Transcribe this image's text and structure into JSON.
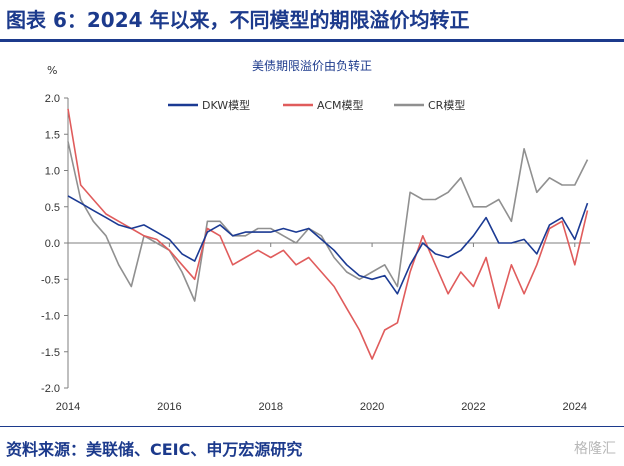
{
  "header": {
    "title": "图表 6：2024 年以来，不同模型的期限溢价均转正"
  },
  "source": "资料来源：美联储、CEIC、申万宏源研究",
  "watermark": "格隆汇",
  "chart_data": {
    "type": "line",
    "title": "美债期限溢价由负转正",
    "unit": "%",
    "ylim": [
      -2.0,
      2.0
    ],
    "yticks": [
      "2.0",
      "1.5",
      "1.0",
      "0.5",
      "0.0",
      "-0.5",
      "-1.0",
      "-1.5",
      "-2.0"
    ],
    "xlim": [
      2014.0,
      2024.3
    ],
    "xticks": [
      "2014",
      "2016",
      "2018",
      "2020",
      "2022",
      "2024"
    ],
    "legend_position": "top",
    "grid": false,
    "x": [
      2014.0,
      2014.25,
      2014.5,
      2014.75,
      2015.0,
      2015.25,
      2015.5,
      2015.75,
      2016.0,
      2016.25,
      2016.5,
      2016.75,
      2017.0,
      2017.25,
      2017.5,
      2017.75,
      2018.0,
      2018.25,
      2018.5,
      2018.75,
      2019.0,
      2019.25,
      2019.5,
      2019.75,
      2020.0,
      2020.25,
      2020.5,
      2020.75,
      2021.0,
      2021.25,
      2021.5,
      2021.75,
      2022.0,
      2022.25,
      2022.5,
      2022.75,
      2023.0,
      2023.25,
      2023.5,
      2023.75,
      2024.0,
      2024.25
    ],
    "series": [
      {
        "name": "DKW模型",
        "color": "#1b3a93",
        "values": [
          0.65,
          0.55,
          0.45,
          0.35,
          0.25,
          0.2,
          0.25,
          0.15,
          0.05,
          -0.15,
          -0.25,
          0.15,
          0.25,
          0.1,
          0.15,
          0.15,
          0.15,
          0.2,
          0.15,
          0.2,
          0.05,
          -0.1,
          -0.3,
          -0.45,
          -0.5,
          -0.45,
          -0.7,
          -0.3,
          0.0,
          -0.15,
          -0.2,
          -0.1,
          0.1,
          0.35,
          0.0,
          0.0,
          0.05,
          -0.15,
          0.25,
          0.35,
          0.05,
          0.55
        ]
      },
      {
        "name": "ACM模型",
        "color": "#e05c5c",
        "values": [
          1.85,
          0.8,
          0.6,
          0.4,
          0.3,
          0.2,
          0.1,
          0.05,
          -0.1,
          -0.3,
          -0.5,
          0.2,
          0.1,
          -0.3,
          -0.2,
          -0.1,
          -0.2,
          -0.1,
          -0.3,
          -0.2,
          -0.4,
          -0.6,
          -0.9,
          -1.2,
          -1.6,
          -1.2,
          -1.1,
          -0.4,
          0.1,
          -0.3,
          -0.7,
          -0.4,
          -0.6,
          -0.2,
          -0.9,
          -0.3,
          -0.7,
          -0.3,
          0.2,
          0.3,
          -0.3,
          0.45
        ]
      },
      {
        "name": "CR模型",
        "color": "#909090",
        "values": [
          1.4,
          0.6,
          0.3,
          0.1,
          -0.3,
          -0.6,
          0.1,
          0.0,
          -0.1,
          -0.4,
          -0.8,
          0.3,
          0.3,
          0.1,
          0.1,
          0.2,
          0.2,
          0.1,
          0.0,
          0.2,
          0.1,
          -0.2,
          -0.4,
          -0.5,
          -0.4,
          -0.3,
          -0.6,
          0.7,
          0.6,
          0.6,
          0.7,
          0.9,
          0.5,
          0.5,
          0.6,
          0.3,
          1.3,
          0.7,
          0.9,
          0.8,
          0.8,
          1.15
        ]
      }
    ]
  }
}
